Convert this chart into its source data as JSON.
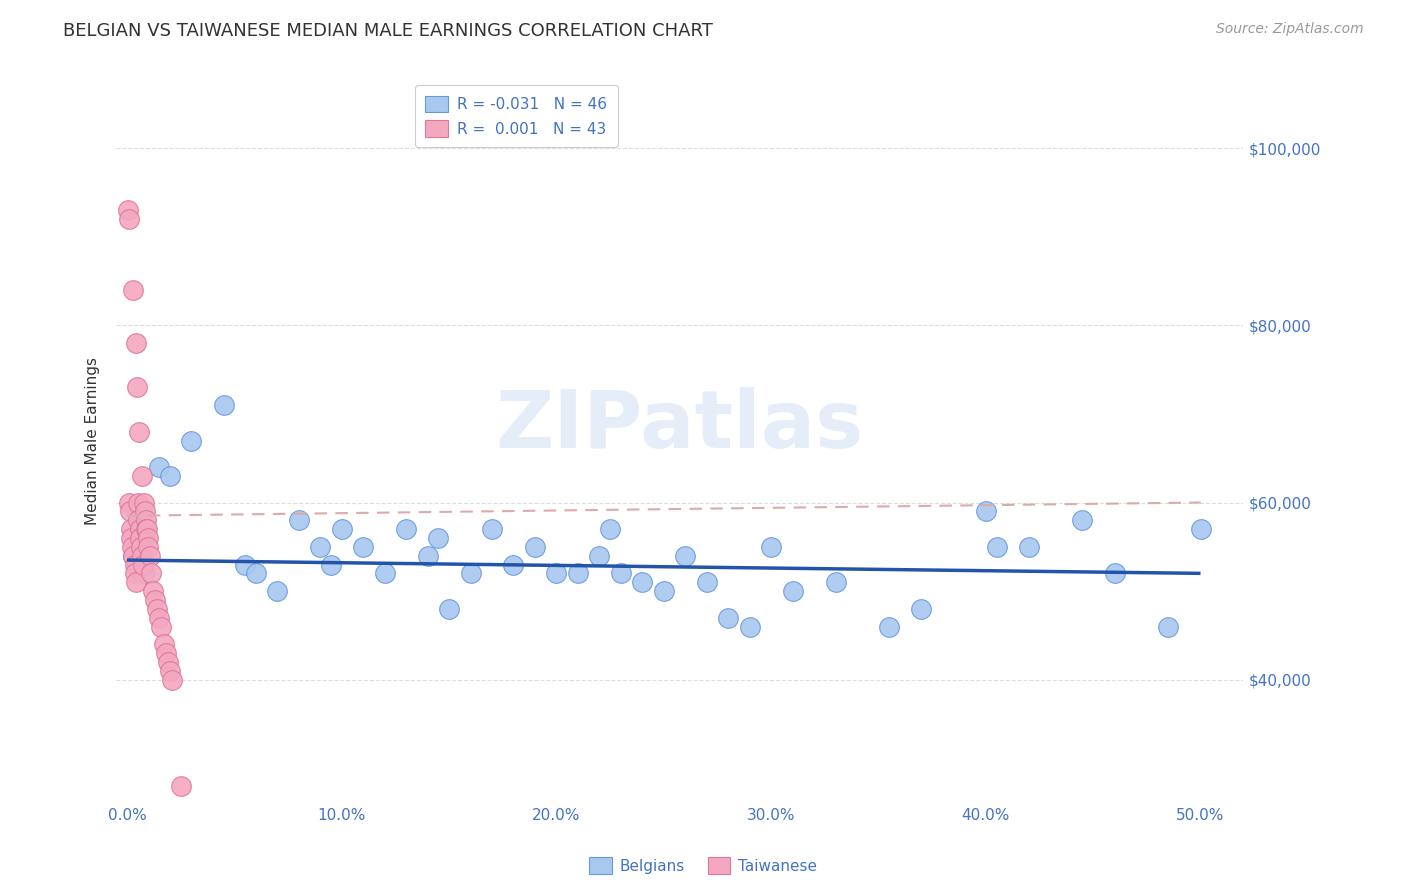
{
  "title": "BELGIAN VS TAIWANESE MEDIAN MALE EARNINGS CORRELATION CHART",
  "source": "Source: ZipAtlas.com",
  "ylabel": "Median Male Earnings",
  "xlabel_ticks": [
    "0.0%",
    "10.0%",
    "20.0%",
    "30.0%",
    "40.0%",
    "50.0%"
  ],
  "xlabel_vals": [
    0,
    10,
    20,
    30,
    40,
    50
  ],
  "ytick_vals": [
    40000,
    60000,
    80000,
    100000
  ],
  "yright_labels": [
    "$40,000",
    "$60,000",
    "$80,000",
    "$100,000"
  ],
  "ylim": [
    26000,
    108000
  ],
  "xlim": [
    -0.5,
    52
  ],
  "belgian_color": "#a8c8f0",
  "taiwanese_color": "#f4a8c0",
  "belgian_edge": "#6699dd",
  "taiwanese_edge": "#dd7799",
  "regression_blue": "#2255aa",
  "regression_pink": "#ddaaaa",
  "legend_R_blue": "-0.031",
  "legend_N_blue": "46",
  "legend_R_pink": "0.001",
  "legend_N_pink": "43",
  "watermark": "ZIPatlas",
  "belgians_x": [
    0.3,
    0.8,
    1.5,
    2.0,
    3.0,
    4.5,
    5.5,
    6.0,
    7.0,
    8.0,
    9.0,
    9.5,
    10.0,
    11.0,
    12.0,
    13.0,
    14.0,
    14.5,
    15.0,
    16.0,
    17.0,
    18.0,
    19.0,
    20.0,
    21.0,
    22.0,
    22.5,
    23.0,
    24.0,
    25.0,
    26.0,
    27.0,
    28.0,
    29.0,
    30.0,
    31.0,
    33.0,
    35.5,
    37.0,
    40.0,
    40.5,
    42.0,
    44.5,
    46.0,
    48.5,
    50.0
  ],
  "belgians_y": [
    54000,
    52000,
    64000,
    63000,
    67000,
    71000,
    53000,
    52000,
    50000,
    58000,
    55000,
    53000,
    57000,
    55000,
    52000,
    57000,
    54000,
    56000,
    48000,
    52000,
    57000,
    53000,
    55000,
    52000,
    52000,
    54000,
    57000,
    52000,
    51000,
    50000,
    54000,
    51000,
    47000,
    46000,
    55000,
    50000,
    51000,
    46000,
    48000,
    59000,
    55000,
    55000,
    58000,
    52000,
    46000,
    57000
  ],
  "taiwanese_x": [
    0.05,
    0.1,
    0.1,
    0.15,
    0.2,
    0.2,
    0.25,
    0.3,
    0.3,
    0.35,
    0.35,
    0.4,
    0.4,
    0.45,
    0.5,
    0.5,
    0.55,
    0.6,
    0.6,
    0.65,
    0.7,
    0.7,
    0.75,
    0.8,
    0.85,
    0.9,
    0.9,
    0.95,
    1.0,
    1.0,
    1.05,
    1.1,
    1.2,
    1.3,
    1.4,
    1.5,
    1.6,
    1.7,
    1.8,
    1.9,
    2.0,
    2.1,
    2.5
  ],
  "taiwanese_y": [
    93000,
    92000,
    60000,
    59000,
    57000,
    56000,
    55000,
    54000,
    84000,
    53000,
    52000,
    78000,
    51000,
    73000,
    60000,
    58000,
    68000,
    57000,
    56000,
    55000,
    63000,
    54000,
    53000,
    60000,
    59000,
    58000,
    57000,
    57000,
    56000,
    55000,
    54000,
    52000,
    50000,
    49000,
    48000,
    47000,
    46000,
    44000,
    43000,
    42000,
    41000,
    40000,
    28000
  ],
  "title_fontsize": 13,
  "axis_label_fontsize": 11,
  "tick_fontsize": 11,
  "source_fontsize": 10,
  "legend_fontsize": 11,
  "grid_color": "#dddddd",
  "background_color": "#ffffff",
  "title_color": "#333333",
  "axis_color": "#4472c4",
  "source_color": "#999999"
}
